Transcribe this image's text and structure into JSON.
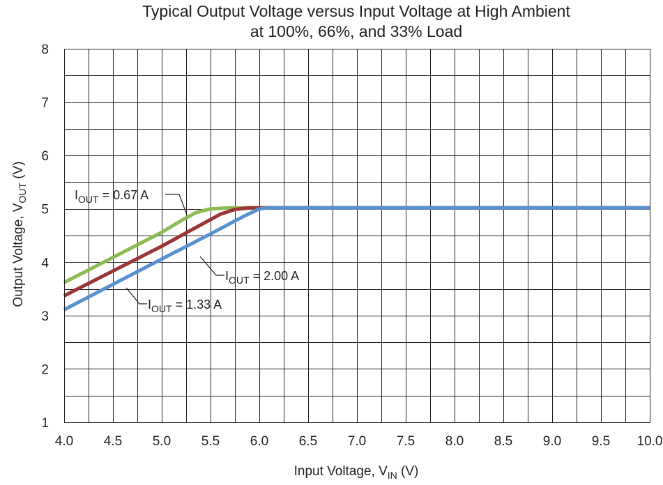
{
  "chart_data": {
    "type": "line",
    "title_lines": [
      "Typical Output Voltage versus Input Voltage at High Ambient",
      "at 100%, 66%, and 33% Load"
    ],
    "xlabel": {
      "main": "Input Voltage, V",
      "sub": "IN",
      "tail": " (V)"
    },
    "ylabel": {
      "main": "Output Voltage, V",
      "sub": "OUT",
      "tail": " (V)"
    },
    "xlim": [
      4.0,
      10.0
    ],
    "ylim": [
      1,
      8
    ],
    "x_ticks": [
      4.0,
      4.5,
      5.0,
      5.5,
      6.0,
      6.5,
      7.0,
      7.5,
      8.0,
      8.5,
      9.0,
      9.5,
      10.0
    ],
    "x_tick_labels": [
      "4.0",
      "4.5",
      "5.0",
      "5.5",
      "6.0",
      "6.5",
      "7.0",
      "7.5",
      "8.0",
      "8.5",
      "9.0",
      "9.5",
      "10.0"
    ],
    "y_ticks": [
      1,
      2,
      3,
      4,
      5,
      6,
      7,
      8
    ],
    "y_tick_labels": [
      "1",
      "2",
      "3",
      "4",
      "5",
      "6",
      "7",
      "8"
    ],
    "x_minor_step": 0.25,
    "y_minor_step": 0.5,
    "grid": true,
    "series": [
      {
        "label": {
          "main": "I",
          "sub": "OUT",
          "tail": " = 0.67 A"
        },
        "color": "#8dba52",
        "points": [
          [
            4.0,
            3.62
          ],
          [
            5.0,
            4.56
          ],
          [
            5.2,
            4.78
          ],
          [
            5.35,
            4.93
          ],
          [
            5.5,
            5.0
          ],
          [
            5.7,
            5.02
          ],
          [
            6.0,
            5.02
          ],
          [
            10.0,
            5.02
          ]
        ]
      },
      {
        "label": {
          "main": "I",
          "sub": "OUT",
          "tail": " = 2.00 A"
        },
        "color": "#9b3434",
        "points": [
          [
            4.0,
            3.37
          ],
          [
            5.0,
            4.3
          ],
          [
            5.4,
            4.7
          ],
          [
            5.6,
            4.9
          ],
          [
            5.75,
            4.99
          ],
          [
            5.9,
            5.02
          ],
          [
            10.0,
            5.02
          ]
        ]
      },
      {
        "label": {
          "main": "I",
          "sub": "OUT",
          "tail": " = 1.33 A"
        },
        "color": "#5891cf",
        "points": [
          [
            4.0,
            3.11
          ],
          [
            5.0,
            4.06
          ],
          [
            5.5,
            4.53
          ],
          [
            5.85,
            4.87
          ],
          [
            6.0,
            5.0
          ],
          [
            6.1,
            5.02
          ],
          [
            10.0,
            5.02
          ]
        ]
      }
    ]
  }
}
